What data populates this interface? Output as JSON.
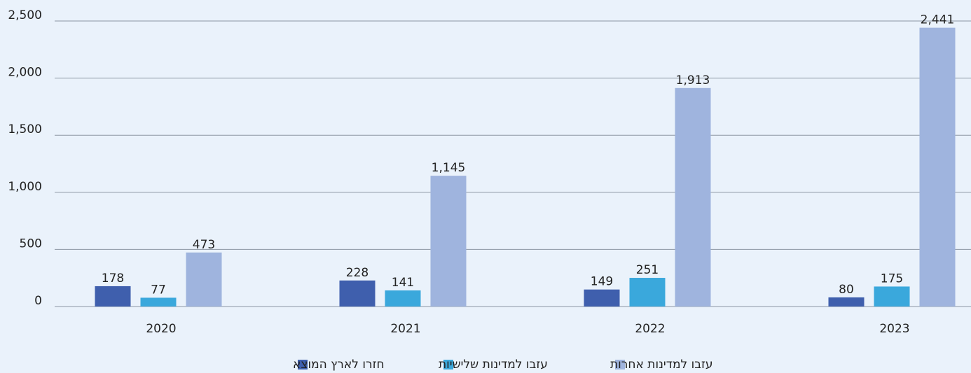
{
  "chart_data": {
    "type": "bar",
    "categories": [
      "2020",
      "2021",
      "2022",
      "2023"
    ],
    "series": [
      {
        "name": "חזרו לארץ המוצא",
        "color": "#3f5fad",
        "values": [
          178,
          228,
          149,
          80
        ],
        "value_labels": [
          "178",
          "228",
          "149",
          "80"
        ]
      },
      {
        "name": "עזבו למדינות שלישיות",
        "color": "#3aa8dc",
        "values": [
          77,
          141,
          251,
          175
        ],
        "value_labels": [
          "77",
          "141",
          "251",
          "175"
        ]
      },
      {
        "name": "עזבו למדינות אחרות",
        "color": "#9fb4de",
        "values": [
          473,
          1145,
          1913,
          2441
        ],
        "value_labels": [
          "473",
          "1,145",
          "1,913",
          "2,441"
        ]
      }
    ],
    "ylim": [
      0,
      2500
    ],
    "yticks": [
      0,
      500,
      {
        "value": 1000,
        "label": "1,000"
      },
      {
        "value": 1500,
        "label": "1,500"
      },
      {
        "value": 2000,
        "label": "2,000"
      },
      {
        "value": 2500,
        "label": "2,500"
      }
    ],
    "grid": true,
    "legend": "bottom"
  }
}
